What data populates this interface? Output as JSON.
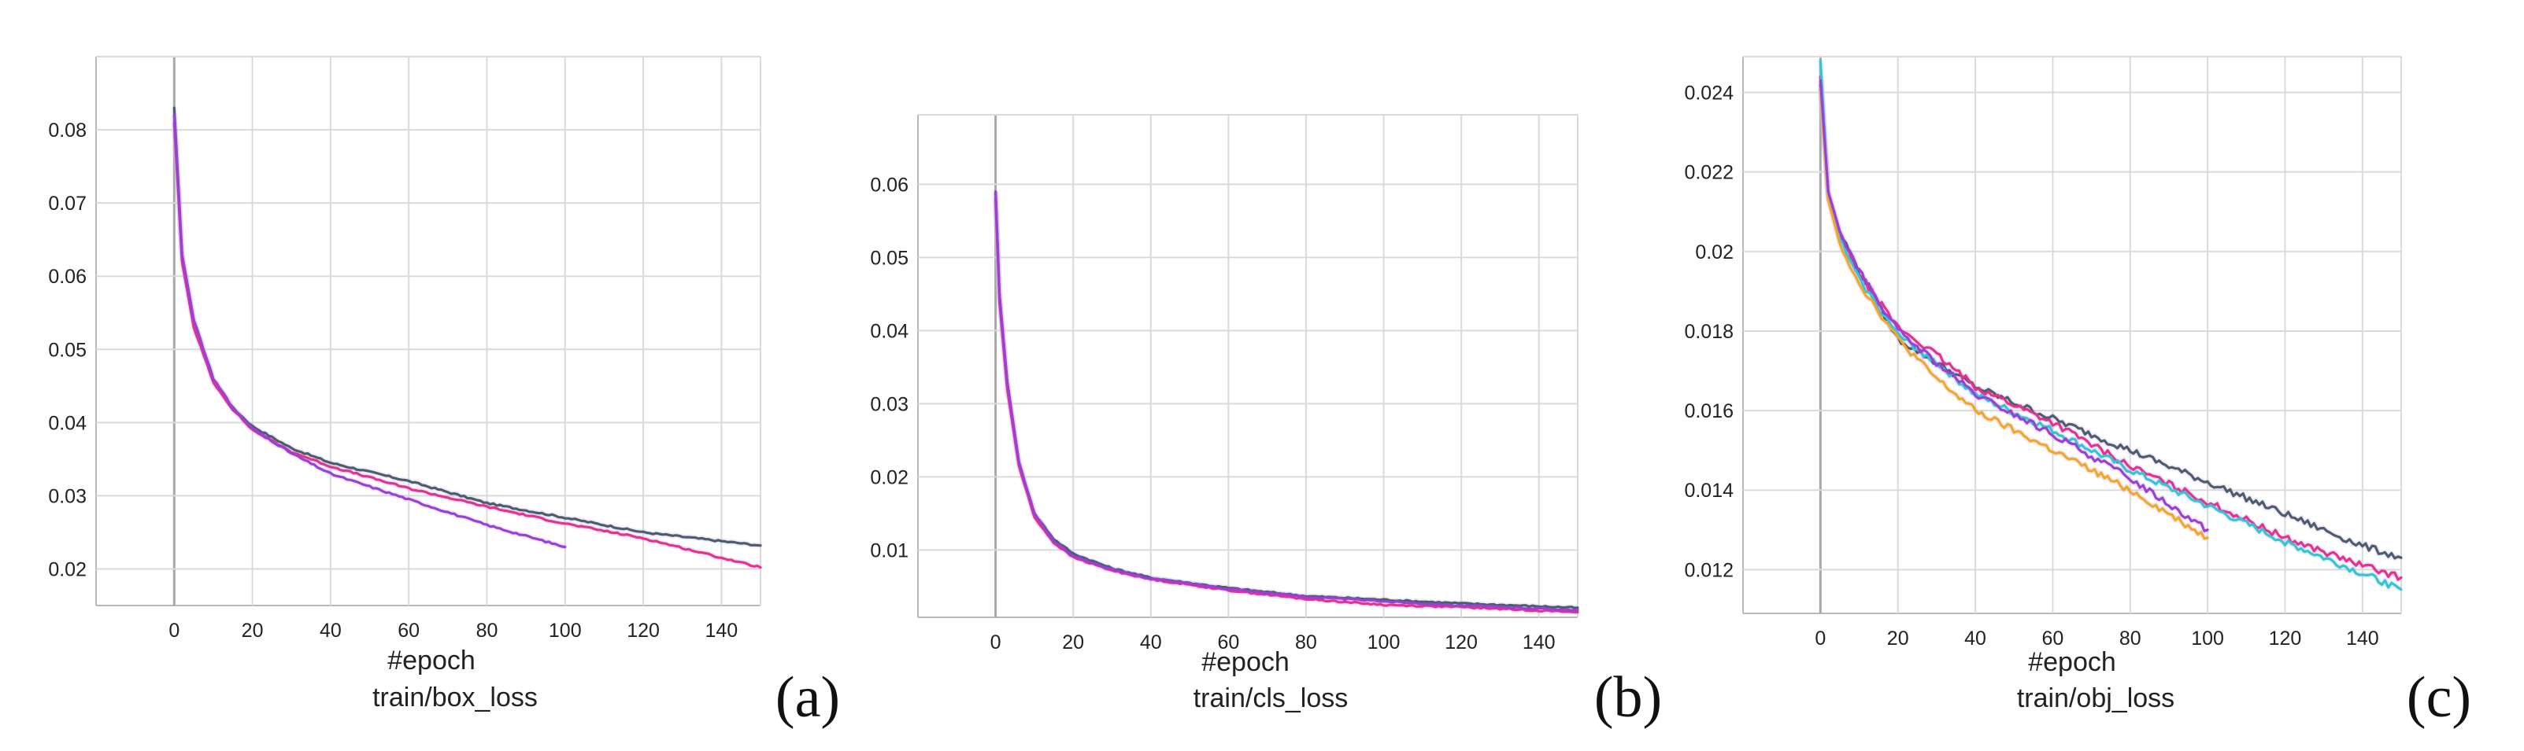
{
  "colors": {
    "slate": "#4c5d6e",
    "magenta": "#e8308f",
    "violet": "#9a3fd8",
    "orange": "#f5a623",
    "cyan": "#2fc6d6",
    "shadow": "#c9b6e6"
  },
  "chart_data": [
    {
      "type": "line",
      "panel": "(a)",
      "xlabel": "#epoch",
      "caption": "train/box_loss",
      "xlim": [
        -20,
        150
      ],
      "ylim": [
        0.015,
        0.09
      ],
      "xticks": [
        "0",
        "20",
        "40",
        "60",
        "80",
        "100",
        "120",
        "140"
      ],
      "yticks": [
        "0.02",
        "0.03",
        "0.04",
        "0.05",
        "0.06",
        "0.07",
        "0.08"
      ],
      "grid": true,
      "series": [
        {
          "color": "#4c5d6e",
          "end": 150,
          "points": [
            [
              0,
              0.083
            ],
            [
              2,
              0.063
            ],
            [
              5,
              0.054
            ],
            [
              10,
              0.046
            ],
            [
              15,
              0.042
            ],
            [
              20,
              0.0395
            ],
            [
              30,
              0.0365
            ],
            [
              40,
              0.0345
            ],
            [
              60,
              0.032
            ],
            [
              80,
              0.029
            ],
            [
              100,
              0.027
            ],
            [
              120,
              0.025
            ],
            [
              150,
              0.0232
            ]
          ]
        },
        {
          "color": "#e8308f",
          "end": 150,
          "points": [
            [
              0,
              0.081
            ],
            [
              2,
              0.062
            ],
            [
              5,
              0.053
            ],
            [
              10,
              0.0455
            ],
            [
              15,
              0.0418
            ],
            [
              20,
              0.039
            ],
            [
              30,
              0.036
            ],
            [
              40,
              0.034
            ],
            [
              60,
              0.031
            ],
            [
              80,
              0.0285
            ],
            [
              100,
              0.0262
            ],
            [
              120,
              0.0242
            ],
            [
              150,
              0.0202
            ]
          ]
        },
        {
          "color": "#9a3fd8",
          "end": 100,
          "points": [
            [
              0,
              0.082
            ],
            [
              2,
              0.063
            ],
            [
              5,
              0.054
            ],
            [
              10,
              0.046
            ],
            [
              15,
              0.042
            ],
            [
              20,
              0.0392
            ],
            [
              30,
              0.0358
            ],
            [
              40,
              0.033
            ],
            [
              60,
              0.0295
            ],
            [
              80,
              0.026
            ],
            [
              100,
              0.023
            ]
          ]
        }
      ]
    },
    {
      "type": "line",
      "panel": "(b)",
      "xlabel": "#epoch",
      "caption": "train/cls_loss",
      "xlim": [
        -20,
        150
      ],
      "ylim": [
        0.0008,
        0.0695
      ],
      "xticks": [
        "0",
        "20",
        "40",
        "60",
        "80",
        "100",
        "120",
        "140"
      ],
      "yticks": [
        "0.01",
        "0.02",
        "0.03",
        "0.04",
        "0.05",
        "0.06"
      ],
      "grid": true,
      "series": [
        {
          "color": "#4c5d6e",
          "end": 150,
          "points": [
            [
              0,
              0.059
            ],
            [
              1,
              0.045
            ],
            [
              3,
              0.033
            ],
            [
              6,
              0.022
            ],
            [
              10,
              0.015
            ],
            [
              15,
              0.0115
            ],
            [
              20,
              0.0095
            ],
            [
              30,
              0.0075
            ],
            [
              40,
              0.0062
            ],
            [
              60,
              0.0048
            ],
            [
              80,
              0.0037
            ],
            [
              100,
              0.0032
            ],
            [
              120,
              0.0027
            ],
            [
              150,
              0.0021
            ]
          ]
        },
        {
          "color": "#e8308f",
          "end": 150,
          "points": [
            [
              0,
              0.058
            ],
            [
              1,
              0.044
            ],
            [
              3,
              0.032
            ],
            [
              6,
              0.0215
            ],
            [
              10,
              0.0145
            ],
            [
              15,
              0.011
            ],
            [
              20,
              0.009
            ],
            [
              30,
              0.0072
            ],
            [
              40,
              0.006
            ],
            [
              60,
              0.0045
            ],
            [
              80,
              0.0033
            ],
            [
              100,
              0.0025
            ],
            [
              120,
              0.0022
            ],
            [
              150,
              0.0015
            ]
          ]
        },
        {
          "color": "#9a3fd8",
          "end": 150,
          "points": [
            [
              0,
              0.059
            ],
            [
              1,
              0.045
            ],
            [
              3,
              0.033
            ],
            [
              6,
              0.022
            ],
            [
              10,
              0.015
            ],
            [
              15,
              0.0112
            ],
            [
              20,
              0.0092
            ],
            [
              30,
              0.0073
            ],
            [
              40,
              0.0061
            ],
            [
              60,
              0.0047
            ],
            [
              80,
              0.0036
            ],
            [
              100,
              0.003
            ],
            [
              120,
              0.0024
            ],
            [
              150,
              0.0018
            ]
          ]
        }
      ]
    },
    {
      "type": "line",
      "panel": "(c)",
      "xlabel": "#epoch",
      "caption": "train/obj_loss",
      "xlim": [
        -20,
        150
      ],
      "ylim": [
        0.0109,
        0.0249
      ],
      "xticks": [
        "0",
        "20",
        "40",
        "60",
        "80",
        "100",
        "120",
        "140"
      ],
      "yticks": [
        "0.012",
        "0.014",
        "0.016",
        "0.018",
        "0.02",
        "0.022",
        "0.024"
      ],
      "grid": true,
      "series": [
        {
          "color": "#4c5d6e",
          "end": 150,
          "points": [
            [
              0,
              0.0242
            ],
            [
              2,
              0.0215
            ],
            [
              5,
              0.0205
            ],
            [
              10,
              0.0195
            ],
            [
              20,
              0.0178
            ],
            [
              30,
              0.0172
            ],
            [
              40,
              0.0166
            ],
            [
              60,
              0.0158
            ],
            [
              80,
              0.015
            ],
            [
              100,
              0.0142
            ],
            [
              120,
              0.0134
            ],
            [
              140,
              0.0126
            ],
            [
              150,
              0.0123
            ]
          ]
        },
        {
          "color": "#e8308f",
          "end": 150,
          "points": [
            [
              0,
              0.0244
            ],
            [
              2,
              0.0214
            ],
            [
              5,
              0.0204
            ],
            [
              10,
              0.0194
            ],
            [
              20,
              0.0181
            ],
            [
              30,
              0.0174
            ],
            [
              40,
              0.0166
            ],
            [
              60,
              0.0157
            ],
            [
              80,
              0.0146
            ],
            [
              100,
              0.0137
            ],
            [
              120,
              0.0128
            ],
            [
              140,
              0.0121
            ],
            [
              150,
              0.0118
            ]
          ]
        },
        {
          "color": "#2fc6d6",
          "end": 150,
          "points": [
            [
              0,
              0.0248
            ],
            [
              2,
              0.0214
            ],
            [
              5,
              0.0203
            ],
            [
              10,
              0.0193
            ],
            [
              20,
              0.0179
            ],
            [
              30,
              0.0172
            ],
            [
              40,
              0.0164
            ],
            [
              60,
              0.0155
            ],
            [
              80,
              0.0145
            ],
            [
              100,
              0.0136
            ],
            [
              120,
              0.0127
            ],
            [
              140,
              0.0119
            ],
            [
              150,
              0.0115
            ]
          ]
        },
        {
          "color": "#f5a623",
          "end": 100,
          "points": [
            [
              0,
              0.0241
            ],
            [
              2,
              0.0213
            ],
            [
              5,
              0.0202
            ],
            [
              10,
              0.0192
            ],
            [
              20,
              0.0178
            ],
            [
              30,
              0.0168
            ],
            [
              40,
              0.016
            ],
            [
              60,
              0.015
            ],
            [
              80,
              0.014
            ],
            [
              100,
              0.0128
            ]
          ]
        },
        {
          "color": "#9a3fd8",
          "end": 100,
          "points": [
            [
              0,
              0.0243
            ],
            [
              2,
              0.0215
            ],
            [
              5,
              0.0205
            ],
            [
              10,
              0.0195
            ],
            [
              20,
              0.018
            ],
            [
              30,
              0.0172
            ],
            [
              40,
              0.0164
            ],
            [
              60,
              0.0154
            ],
            [
              80,
              0.0143
            ],
            [
              100,
              0.013
            ]
          ]
        }
      ]
    }
  ]
}
